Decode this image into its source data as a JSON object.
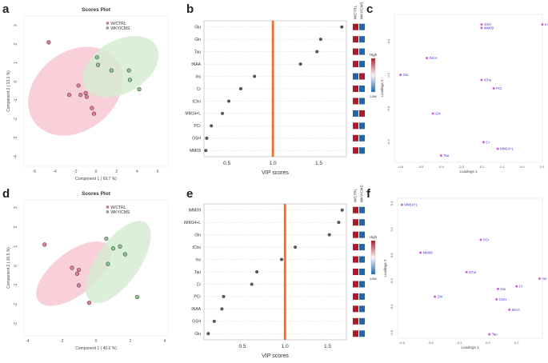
{
  "panel_letters": [
    "a",
    "b",
    "c",
    "d",
    "e",
    "f"
  ],
  "colors": {
    "ctrl_fill": "#f4b6c6",
    "ctrl_ellipse": "#f7c3cf",
    "ctrl_point": "#e87a95",
    "cms_fill": "#c5e6c2",
    "cms_ellipse": "#d3ecd0",
    "cms_point": "#86c98a",
    "vip_line": "#e8722e",
    "high": "#b2182b",
    "mid": "#f7f7f7",
    "low": "#2166ac",
    "loading_point": "#d062d0",
    "loading_label": "#3b3bd0"
  },
  "chart_data": [
    {
      "type": "scatter",
      "panel": "a",
      "title": "Scores Plot",
      "xlabel": "Component 1 ( 69.7 %)",
      "ylabel": "Component 2 ( 13.1 %)",
      "xlim": [
        -7,
        7
      ],
      "ylim": [
        -4.5,
        3.5
      ],
      "xticks": [
        -6,
        -4,
        -2,
        0,
        2,
        4,
        6
      ],
      "yticks": [
        -4,
        -3,
        -2,
        -1,
        0,
        1,
        2,
        3
      ],
      "legend": [
        "W/CTRL",
        "WKY/CMS"
      ],
      "ellipses": [
        {
          "group": "W/CTRL",
          "cx": -2.0,
          "cy": -0.5,
          "rx": 5.0,
          "ry": 2.1,
          "angle_deg": -38
        },
        {
          "group": "WKY/CMS",
          "cx": 2.4,
          "cy": 0.8,
          "rx": 4.0,
          "ry": 1.4,
          "angle_deg": -30
        }
      ],
      "series": [
        {
          "name": "W/CTRL",
          "x": [
            -4.6,
            -1.7,
            -1.0,
            -0.4,
            -2.6,
            -0.9,
            -0.2,
            -1.5
          ],
          "y": [
            2.1,
            -0.2,
            -0.6,
            -1.4,
            -0.7,
            -0.8,
            -1.7,
            -0.7
          ]
        },
        {
          "name": "WKY/CMS",
          "x": [
            0.1,
            0.2,
            1.5,
            3.2,
            3.3,
            4.2
          ],
          "y": [
            1.3,
            0.9,
            0.6,
            0.6,
            0.1,
            -0.4
          ]
        }
      ]
    },
    {
      "type": "dot",
      "panel": "b",
      "xlabel": "VIP scores",
      "xlim": [
        0.25,
        1.8
      ],
      "xticks": [
        0.5,
        1.0,
        1.5
      ],
      "reference_line": 1.0,
      "categories": [
        "Glu",
        "Gln",
        "Tau",
        "tNAA",
        "Ins",
        "Cr",
        "tCho",
        "MM14+L",
        "PCr",
        "GSH",
        "MM09"
      ],
      "values": [
        1.75,
        1.52,
        1.48,
        1.3,
        0.8,
        0.65,
        0.52,
        0.45,
        0.33,
        0.28,
        0.27
      ],
      "heat_columns": [
        "W/CTRL",
        "WKY/CMS"
      ],
      "heat": [
        [
          "high",
          "low"
        ],
        [
          "high",
          "low"
        ],
        [
          "high",
          "low"
        ],
        [
          "high",
          "low"
        ],
        [
          "low",
          "high"
        ],
        [
          "high",
          "low"
        ],
        [
          "high",
          "low"
        ],
        [
          "low",
          "high"
        ],
        [
          "high",
          "low"
        ],
        [
          "high",
          "low"
        ],
        [
          "high",
          "low"
        ]
      ],
      "colorbar": {
        "high": "High",
        "low": "Low"
      }
    },
    {
      "type": "scatter",
      "panel": "c",
      "xlabel": "Loadings 1",
      "ylabel": "Loadings 2",
      "xlim": [
        -0.63,
        0.1
      ],
      "ylim": [
        -0.32,
        0.56
      ],
      "xticks": [
        -0.6,
        -0.5,
        -0.4,
        -0.3,
        -0.2,
        -0.1,
        0.0,
        0.1
      ],
      "yticks": [
        -0.2,
        0.0,
        0.2,
        0.4
      ],
      "points": [
        {
          "label": "GSH",
          "x": -0.2,
          "y": 0.5
        },
        {
          "label": "MM09",
          "x": -0.2,
          "y": 0.48
        },
        {
          "label": "Ins",
          "x": 0.1,
          "y": 0.5
        },
        {
          "label": "tNAA",
          "x": -0.47,
          "y": 0.3
        },
        {
          "label": "Glu",
          "x": -0.6,
          "y": 0.2
        },
        {
          "label": "tCho",
          "x": -0.2,
          "y": 0.17
        },
        {
          "label": "PCr",
          "x": -0.14,
          "y": 0.12
        },
        {
          "label": "Gln",
          "x": -0.44,
          "y": -0.03
        },
        {
          "label": "Cr",
          "x": -0.19,
          "y": -0.2
        },
        {
          "label": "MM14+L",
          "x": -0.12,
          "y": -0.24
        },
        {
          "label": "Tau",
          "x": -0.4,
          "y": -0.28
        }
      ]
    },
    {
      "type": "scatter",
      "panel": "d",
      "title": "Scores Plot",
      "xlabel": "Component 1 ( 40.6 %)",
      "ylabel": "Component 2 ( 16.5 %)",
      "xlim": [
        -4.2,
        4.2
      ],
      "ylim": [
        -3.6,
        3.4
      ],
      "xticks": [
        -4,
        -2,
        0,
        2,
        4
      ],
      "yticks": [
        -3,
        -2,
        -1,
        0,
        1,
        2,
        3
      ],
      "legend": [
        "W/CTRL",
        "WKY/CMS"
      ],
      "ellipses": [
        {
          "group": "W/CTRL",
          "cx": -1.3,
          "cy": -0.4,
          "rx": 2.6,
          "ry": 1.1,
          "angle_deg": -38
        },
        {
          "group": "WKY/CMS",
          "cx": 1.3,
          "cy": 0.2,
          "rx": 2.8,
          "ry": 1.1,
          "angle_deg": -55
        }
      ],
      "series": [
        {
          "name": "W/CTRL",
          "x": [
            -3.0,
            -1.4,
            -1.1,
            -1.0,
            -1.0,
            -0.4
          ],
          "y": [
            1.1,
            -0.1,
            -0.4,
            -0.2,
            -1.0,
            -1.9
          ]
        },
        {
          "name": "WKY/CMS",
          "x": [
            0.6,
            1.0,
            1.4,
            1.7,
            0.7,
            2.4
          ],
          "y": [
            1.4,
            0.9,
            1.0,
            0.6,
            0.1,
            -1.6
          ]
        }
      ]
    },
    {
      "type": "dot",
      "panel": "e",
      "xlabel": "VIP scores",
      "xlim": [
        0.05,
        1.72
      ],
      "xticks": [
        0.5,
        1.0,
        1.5
      ],
      "reference_line": 1.0,
      "categories": [
        "tMM09",
        "tMM14+L",
        "Gln",
        "tCho",
        "Ins",
        "Tau",
        "Cr",
        "PCr",
        "tNAA",
        "GSH",
        "Glu"
      ],
      "values": [
        1.67,
        1.63,
        1.52,
        1.12,
        0.96,
        0.67,
        0.61,
        0.28,
        0.26,
        0.17,
        0.1
      ],
      "heat_columns": [
        "W/CTRL",
        "WKY/CMS"
      ],
      "heat": [
        [
          "high",
          "low"
        ],
        [
          "high",
          "low"
        ],
        [
          "high",
          "low"
        ],
        [
          "high",
          "low"
        ],
        [
          "high",
          "low"
        ],
        [
          "high",
          "low"
        ],
        [
          "high",
          "low"
        ],
        [
          "high",
          "low"
        ],
        [
          "high",
          "low"
        ],
        [
          "high",
          "low"
        ],
        [
          "high",
          "low"
        ]
      ],
      "colorbar": {
        "high": "High",
        "low": "Low"
      }
    },
    {
      "type": "scatter",
      "panel": "f",
      "xlabel": "Loadings 1",
      "ylabel": "Loadings 2",
      "xlim": [
        -0.63,
        0.38
      ],
      "ylim": [
        -0.64,
        0.44
      ],
      "xticks": [
        -0.6,
        -0.4,
        -0.2,
        0.0,
        0.2
      ],
      "yticks": [
        -0.6,
        -0.4,
        -0.2,
        0.0,
        0.2,
        0.4
      ],
      "points": [
        {
          "label": "MM14+L",
          "x": -0.6,
          "y": 0.39
        },
        {
          "label": "PCr",
          "x": -0.05,
          "y": 0.12
        },
        {
          "label": "MM09",
          "x": -0.47,
          "y": 0.02
        },
        {
          "label": "tCho",
          "x": -0.15,
          "y": -0.13
        },
        {
          "label": "Ins",
          "x": 0.36,
          "y": -0.18
        },
        {
          "label": "Cr",
          "x": 0.2,
          "y": -0.24
        },
        {
          "label": "Glu",
          "x": 0.07,
          "y": -0.26
        },
        {
          "label": "Gln",
          "x": -0.37,
          "y": -0.32
        },
        {
          "label": "GSH",
          "x": 0.06,
          "y": -0.34
        },
        {
          "label": "tNAA",
          "x": 0.15,
          "y": -0.42
        },
        {
          "label": "Tau",
          "x": 0.01,
          "y": -0.61
        }
      ]
    }
  ]
}
